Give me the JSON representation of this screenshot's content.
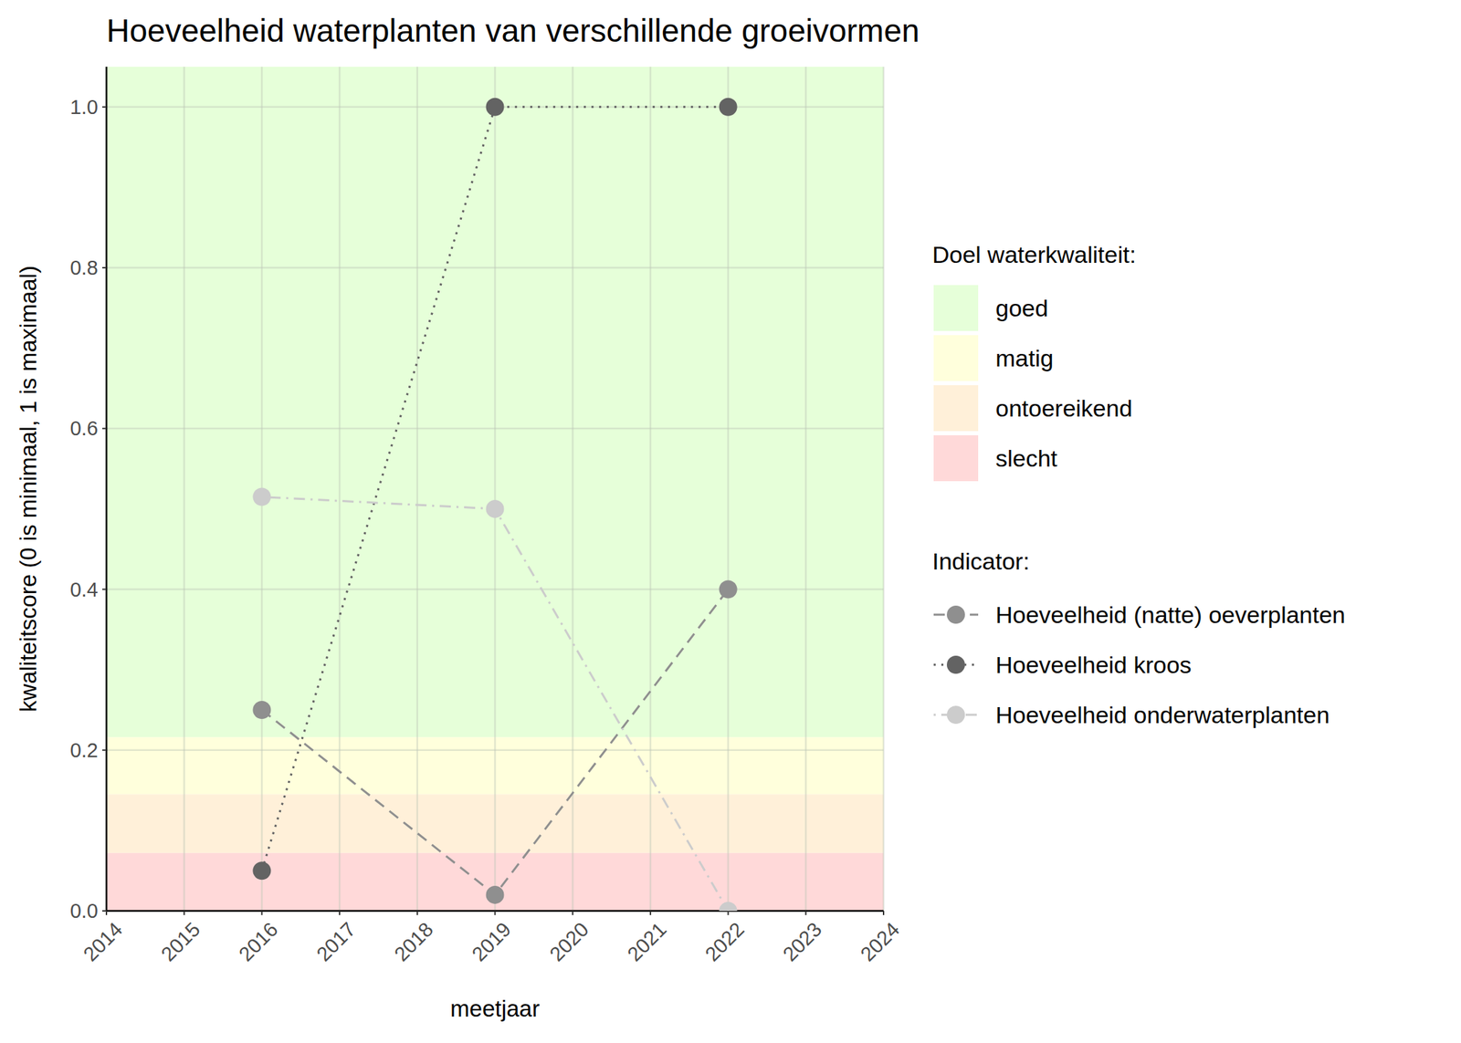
{
  "chart_data": {
    "type": "line",
    "title": "Hoeveelheid waterplanten van verschillende groeivormen",
    "x_label": "meetjaar",
    "y_label": "kwaliteitscore (0 is minimaal, 1 is maximaal)",
    "x": [
      2016,
      2019,
      2022
    ],
    "xlim": [
      2014,
      2024
    ],
    "xticks": [
      2014,
      2015,
      2016,
      2017,
      2018,
      2019,
      2020,
      2021,
      2022,
      2023,
      2024
    ],
    "ylim": [
      0,
      1.05
    ],
    "yticks": [
      {
        "value": 0,
        "label": "0.0"
      },
      0.2,
      0.4,
      0.6,
      0.8,
      {
        "value": 1,
        "label": "1.0"
      }
    ],
    "grid": true,
    "legend": "right",
    "band_legend_title": "Doel waterkwaliteit:",
    "bands": [
      {
        "name": "goed",
        "color": "#e6ffd9",
        "from": 0.216,
        "to": 1.05
      },
      {
        "name": "matig",
        "color": "#ffffdc",
        "from": 0.145,
        "to": 0.216
      },
      {
        "name": "ontoereikend",
        "color": "#fff0d9",
        "from": 0.072,
        "to": 0.145
      },
      {
        "name": "slecht",
        "color": "#ffd9d9",
        "from": 0,
        "to": 0.072
      }
    ],
    "series_legend_title": "Indicator:",
    "series": [
      {
        "name": "Hoeveelheid (natte) oeverplanten",
        "color": "#8f8f8f",
        "line_style": "dashed",
        "marker": "circle",
        "values": [
          0.25,
          0.02,
          0.4
        ]
      },
      {
        "name": "Hoeveelheid kroos",
        "color": "#636363",
        "line_style": "dotted",
        "marker": "circle",
        "values": [
          0.05,
          1.0,
          1.0
        ]
      },
      {
        "name": "Hoeveelheid onderwaterplanten",
        "color": "#cccccc",
        "line_style": "dotdash",
        "marker": "circle",
        "values": [
          0.515,
          0.5,
          0.0
        ]
      }
    ]
  }
}
